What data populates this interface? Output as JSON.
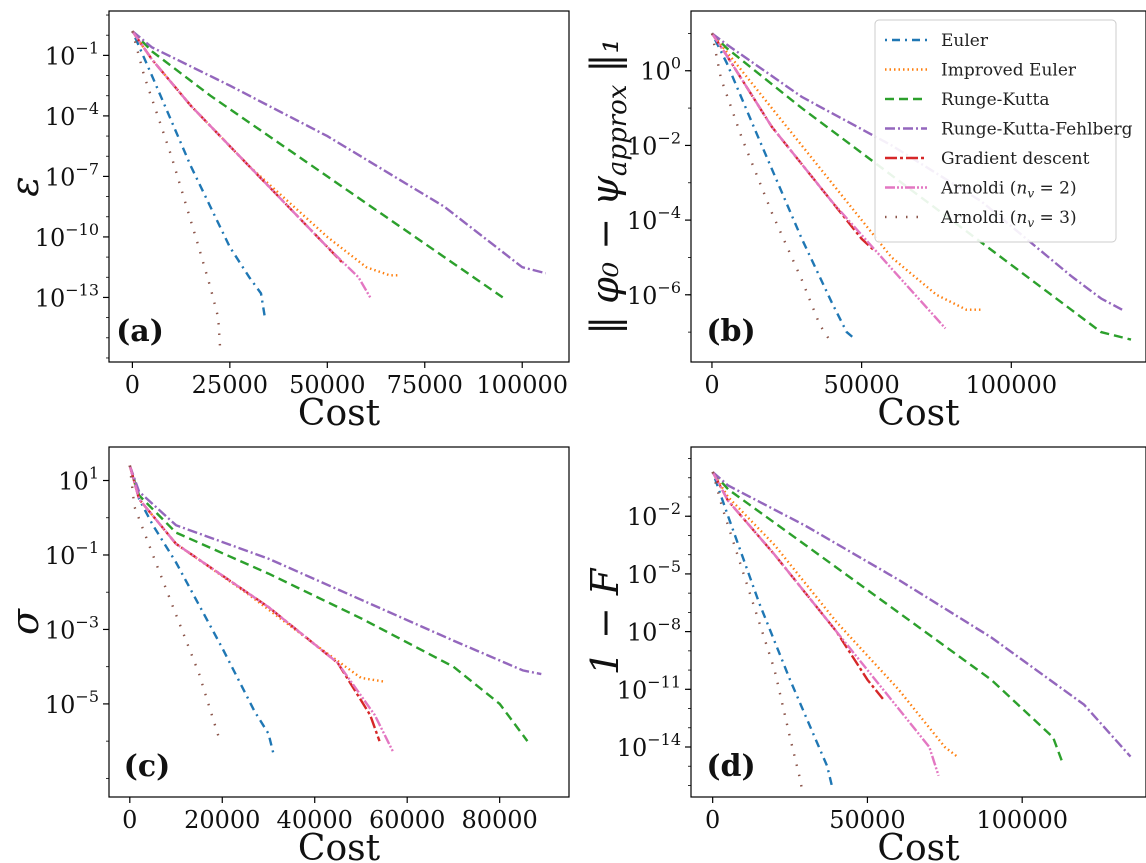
{
  "figure": {
    "series_styles": [
      {
        "name": "Euler",
        "color": "#1f77b4",
        "dash": "2 5 8 5"
      },
      {
        "name": "Improved Euler",
        "color": "#ff7f0e",
        "dash": "1.5 3"
      },
      {
        "name": "Runge-Kutta",
        "color": "#2ca02c",
        "dash": "9 5"
      },
      {
        "name": "Runge-Kutta-Fehlberg",
        "color": "#9467bd",
        "dash": "10 3 2 3"
      },
      {
        "name": "Gradient descent",
        "color": "#d62728",
        "dash": "12 3 3 3"
      },
      {
        "name": "Arnoldi (n_v = 2)",
        "color": "#e377c2",
        "dash": "10 2 2 2 2 2"
      },
      {
        "name": "Arnoldi (n_v = 3)",
        "color": "#8c564b",
        "dash": "1.5 9"
      }
    ],
    "legend": {
      "placement": "top-right of panel (b)",
      "entries": [
        "Euler",
        "Improved Euler",
        "Runge-Kutta",
        "Runge-Kutta-Fehlberg",
        "Gradient descent",
        "Arnoldi (n_v = 2)",
        "Arnoldi (n_v = 3)"
      ]
    }
  },
  "chart_data": [
    {
      "panel": "(a)",
      "type": "line",
      "xlabel": "Cost",
      "ylabel": "ε",
      "xlim": [
        -6000,
        112000
      ],
      "ylim_log10": [
        -16.2,
        1.2
      ],
      "xticks": [
        0,
        25000,
        50000,
        75000,
        100000
      ],
      "xtick_labels": [
        "0",
        "25000",
        "50000",
        "75000",
        "100000"
      ],
      "yticks_log10": [
        -1,
        -4,
        -7,
        -10,
        -13
      ],
      "ytick_labels": [
        "10^-1",
        "10^-4",
        "10^-7",
        "10^-10",
        "10^-13"
      ],
      "grid": false,
      "series": [
        {
          "name": "Euler",
          "x": [
            0,
            5000,
            15000,
            25000,
            30000,
            33000,
            34000
          ],
          "y_log10": [
            0.2,
            -2.0,
            -6.5,
            -10.5,
            -12.0,
            -12.8,
            -14.0
          ]
        },
        {
          "name": "Improved Euler",
          "x": [
            0,
            5000,
            15000,
            30000,
            50000,
            60000,
            66000,
            68000
          ],
          "y_log10": [
            0.2,
            -1.2,
            -3.5,
            -6.5,
            -10.0,
            -11.5,
            -11.9,
            -11.9
          ]
        },
        {
          "name": "Runge-Kutta",
          "x": [
            0,
            5000,
            20000,
            50000,
            80000,
            95000
          ],
          "y_log10": [
            0.2,
            -0.8,
            -3.0,
            -7.0,
            -11.0,
            -13.0
          ]
        },
        {
          "name": "Runge-Kutta-Fehlberg",
          "x": [
            0,
            5000,
            25000,
            50000,
            80000,
            100000,
            106000
          ],
          "y_log10": [
            0.2,
            -0.6,
            -2.5,
            -5.0,
            -8.5,
            -11.5,
            -11.8
          ]
        },
        {
          "name": "Gradient descent",
          "x": [
            0,
            5000,
            15000,
            30000,
            45000,
            50000,
            54000
          ],
          "y_log10": [
            0.2,
            -1.2,
            -3.5,
            -6.5,
            -9.5,
            -10.5,
            -11.3
          ]
        },
        {
          "name": "Arnoldi (n_v = 2)",
          "x": [
            0,
            5000,
            15000,
            30000,
            50000,
            58000,
            61000
          ],
          "y_log10": [
            0.2,
            -1.2,
            -3.5,
            -6.5,
            -10.5,
            -12.0,
            -13.0
          ]
        },
        {
          "name": "Arnoldi (n_v = 3)",
          "x": [
            0,
            3000,
            10000,
            17000,
            20000,
            22000,
            22500
          ],
          "y_log10": [
            0.2,
            -2.0,
            -6.0,
            -10.5,
            -12.5,
            -14.0,
            -15.5
          ]
        }
      ]
    },
    {
      "panel": "(b)",
      "type": "line",
      "xlabel": "Cost",
      "ylabel": "‖ φ₀ − ψ_approx ‖₁",
      "xlim": [
        -7000,
        145000
      ],
      "ylim_log10": [
        -7.8,
        1.6
      ],
      "xticks": [
        0,
        50000,
        100000
      ],
      "xtick_labels": [
        "0",
        "50000",
        "100000"
      ],
      "yticks_log10": [
        0,
        -2,
        -4,
        -6
      ],
      "ytick_labels": [
        "10^0",
        "10^-2",
        "10^-4",
        "10^-6"
      ],
      "grid": false,
      "series": [
        {
          "name": "Euler",
          "x": [
            0,
            5000,
            15000,
            30000,
            40000,
            45000,
            48000
          ],
          "y_log10": [
            1.0,
            0.2,
            -1.7,
            -4.5,
            -6.2,
            -7.0,
            -7.2
          ]
        },
        {
          "name": "Improved Euler",
          "x": [
            0,
            5000,
            20000,
            40000,
            60000,
            75000,
            85000,
            90000
          ],
          "y_log10": [
            1.0,
            0.5,
            -1.0,
            -3.0,
            -5.0,
            -6.0,
            -6.4,
            -6.4
          ]
        },
        {
          "name": "Runge-Kutta",
          "x": [
            0,
            5000,
            30000,
            60000,
            90000,
            120000,
            130000,
            140000
          ],
          "y_log10": [
            1.0,
            0.6,
            -1.0,
            -2.8,
            -4.6,
            -6.4,
            -7.0,
            -7.2
          ]
        },
        {
          "name": "Runge-Kutta-Fehlberg",
          "x": [
            0,
            5000,
            30000,
            60000,
            90000,
            120000,
            130000,
            137000
          ],
          "y_log10": [
            1.0,
            0.7,
            -0.7,
            -2.0,
            -3.5,
            -5.5,
            -6.1,
            -6.4
          ]
        },
        {
          "name": "Gradient descent",
          "x": [
            0,
            5000,
            20000,
            40000,
            50000,
            54000
          ],
          "y_log10": [
            1.0,
            0.4,
            -1.5,
            -3.5,
            -4.5,
            -4.8
          ]
        },
        {
          "name": "Arnoldi (n_v = 2)",
          "x": [
            0,
            5000,
            20000,
            40000,
            60000,
            78000
          ],
          "y_log10": [
            1.0,
            0.4,
            -1.5,
            -3.5,
            -5.3,
            -6.9
          ]
        },
        {
          "name": "Arnoldi (n_v = 3)",
          "x": [
            0,
            3000,
            10000,
            20000,
            30000,
            36000,
            40000
          ],
          "y_log10": [
            1.0,
            -0.2,
            -1.8,
            -3.8,
            -5.6,
            -6.8,
            -7.3
          ]
        }
      ]
    },
    {
      "panel": "(c)",
      "type": "line",
      "xlabel": "Cost",
      "ylabel": "σ",
      "xlim": [
        -4500,
        95000
      ],
      "ylim_log10": [
        -7.5,
        1.9
      ],
      "xticks": [
        0,
        20000,
        40000,
        60000,
        80000
      ],
      "xtick_labels": [
        "0",
        "20000",
        "40000",
        "60000",
        "80000"
      ],
      "yticks_log10": [
        1,
        -1,
        -3,
        -5
      ],
      "ytick_labels": [
        "10^1",
        "10^-1",
        "10^-3",
        "10^-5"
      ],
      "grid": false,
      "series": [
        {
          "name": "Euler",
          "x": [
            0,
            2000,
            5000,
            10000,
            20000,
            27000,
            30000,
            31000
          ],
          "y_log10": [
            1.4,
            0.5,
            -0.2,
            -1.2,
            -3.5,
            -5.2,
            -5.8,
            -6.3
          ]
        },
        {
          "name": "Improved Euler",
          "x": [
            0,
            2000,
            10000,
            25000,
            40000,
            50000,
            55000
          ],
          "y_log10": [
            1.4,
            0.5,
            -0.7,
            -2.0,
            -3.4,
            -4.3,
            -4.4
          ]
        },
        {
          "name": "Runge-Kutta",
          "x": [
            0,
            2000,
            10000,
            30000,
            50000,
            70000,
            80000,
            86000
          ],
          "y_log10": [
            1.4,
            0.6,
            -0.4,
            -1.5,
            -2.7,
            -4.0,
            -5.0,
            -6.0
          ]
        },
        {
          "name": "Runge-Kutta-Fehlberg",
          "x": [
            0,
            2000,
            10000,
            30000,
            50000,
            70000,
            85000,
            89000
          ],
          "y_log10": [
            1.4,
            0.7,
            -0.2,
            -1.1,
            -2.2,
            -3.3,
            -4.1,
            -4.2
          ]
        },
        {
          "name": "Gradient descent",
          "x": [
            0,
            2000,
            10000,
            30000,
            45000,
            52000,
            54000
          ],
          "y_log10": [
            1.4,
            0.5,
            -0.7,
            -2.4,
            -3.9,
            -5.3,
            -6.0
          ]
        },
        {
          "name": "Arnoldi (n_v = 2)",
          "x": [
            0,
            2000,
            10000,
            30000,
            45000,
            53000,
            57000
          ],
          "y_log10": [
            1.4,
            0.5,
            -0.7,
            -2.4,
            -3.9,
            -5.3,
            -6.3
          ]
        },
        {
          "name": "Arnoldi (n_v = 3)",
          "x": [
            0,
            1000,
            5000,
            10000,
            15000,
            18000,
            19500
          ],
          "y_log10": [
            1.4,
            0.3,
            -1.0,
            -2.6,
            -4.2,
            -5.4,
            -6.0
          ]
        }
      ]
    },
    {
      "panel": "(d)",
      "type": "line",
      "xlabel": "Cost",
      "ylabel": "1 − F",
      "xlim": [
        -7000,
        140000
      ],
      "ylim_log10": [
        -16.6,
        1.6
      ],
      "xticks": [
        0,
        50000,
        100000
      ],
      "xtick_labels": [
        "0",
        "50000",
        "100000"
      ],
      "yticks_log10": [
        -2,
        -5,
        -8,
        -11,
        -14
      ],
      "ytick_labels": [
        "10^-2",
        "10^-5",
        "10^-8",
        "10^-11",
        "10^-14"
      ],
      "grid": false,
      "series": [
        {
          "name": "Euler",
          "x": [
            0,
            5000,
            15000,
            25000,
            33000,
            37000,
            38500
          ],
          "y_log10": [
            0.3,
            -2.0,
            -6.5,
            -10.5,
            -13.5,
            -15.0,
            -16.0
          ]
        },
        {
          "name": "Improved Euler",
          "x": [
            0,
            5000,
            20000,
            40000,
            60000,
            75000,
            79000
          ],
          "y_log10": [
            0.3,
            -1.0,
            -3.5,
            -7.5,
            -11.0,
            -14.0,
            -14.5
          ]
        },
        {
          "name": "Runge-Kutta",
          "x": [
            0,
            5000,
            30000,
            60000,
            90000,
            110000,
            113000
          ],
          "y_log10": [
            0.3,
            -0.6,
            -3.5,
            -7.0,
            -10.5,
            -13.5,
            -14.8
          ]
        },
        {
          "name": "Runge-Kutta-Fehlberg",
          "x": [
            0,
            5000,
            30000,
            60000,
            90000,
            120000,
            135000
          ],
          "y_log10": [
            0.3,
            -0.4,
            -2.5,
            -5.3,
            -8.3,
            -11.8,
            -14.5
          ]
        },
        {
          "name": "Gradient descent",
          "x": [
            0,
            5000,
            20000,
            40000,
            50000,
            55000
          ],
          "y_log10": [
            0.3,
            -1.2,
            -4.0,
            -8.0,
            -10.5,
            -11.5
          ]
        },
        {
          "name": "Arnoldi (n_v = 2)",
          "x": [
            0,
            5000,
            20000,
            40000,
            60000,
            70000,
            73000
          ],
          "y_log10": [
            0.3,
            -1.2,
            -4.0,
            -8.0,
            -12.0,
            -14.0,
            -15.5
          ]
        },
        {
          "name": "Arnoldi (n_v = 3)",
          "x": [
            0,
            3000,
            10000,
            20000,
            25000,
            28000,
            29000
          ],
          "y_log10": [
            0.3,
            -1.5,
            -5.0,
            -10.0,
            -13.5,
            -15.5,
            -16.3
          ]
        }
      ]
    }
  ]
}
